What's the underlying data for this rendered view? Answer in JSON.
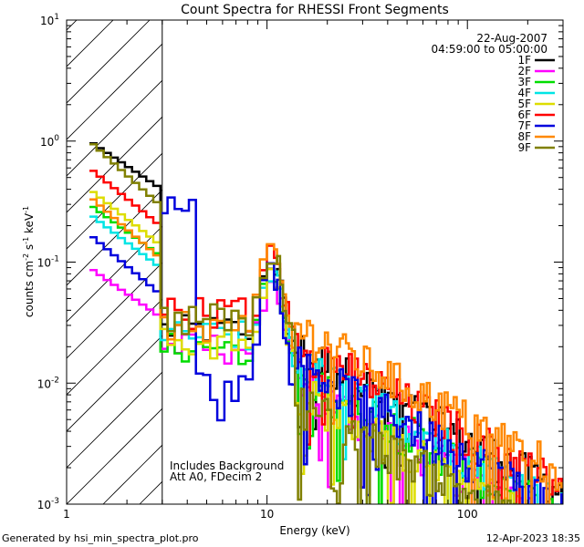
{
  "chart_data": {
    "type": "line",
    "title": "Count Spectra for RHESSI Front Segments",
    "xlabel": "Energy (keV)",
    "ylabel": {
      "main": "counts cm",
      "exp1": "-2",
      "mid": " s",
      "exp2": "-1",
      "end": " keV",
      "exp3": "-1"
    },
    "x_scale": "log",
    "y_scale": "log",
    "xlim": [
      1,
      300
    ],
    "ylim": [
      0.001,
      10
    ],
    "x_ticks": [
      {
        "value": 1,
        "label": "1"
      },
      {
        "value": 10,
        "label": "10"
      },
      {
        "value": 100,
        "label": "100"
      }
    ],
    "y_ticks": [
      {
        "value": 0.001,
        "base": "10",
        "exp": "-3"
      },
      {
        "value": 0.01,
        "base": "10",
        "exp": "-2"
      },
      {
        "value": 0.1,
        "base": "10",
        "exp": "-1"
      },
      {
        "value": 1,
        "base": "10",
        "exp": "0"
      },
      {
        "value": 10,
        "base": "10",
        "exp": "1"
      }
    ],
    "excluded_region": {
      "from": 1,
      "to": 3
    },
    "date": "22-Aug-2007",
    "time_range": "04:59:00 to 05:00:00",
    "annotations": [
      "Includes Background",
      "Att A0, FDecim 2"
    ],
    "series": [
      {
        "name": "1F",
        "color": "#000000",
        "level": 1.0,
        "mid": 0.028,
        "peak": 0.085,
        "tail": 0.004
      },
      {
        "name": "2F",
        "color": "#ff00ff",
        "level": 0.09,
        "mid": 0.02,
        "peak": 0.06,
        "tail": 0.002
      },
      {
        "name": "3F",
        "color": "#00dd00",
        "level": 0.3,
        "mid": 0.02,
        "peak": 0.07,
        "tail": 0.0025
      },
      {
        "name": "4F",
        "color": "#00e5e5",
        "level": 0.25,
        "mid": 0.025,
        "peak": 0.07,
        "tail": 0.003
      },
      {
        "name": "5F",
        "color": "#dddd00",
        "level": 0.4,
        "mid": 0.022,
        "peak": 0.065,
        "tail": 0.0018
      },
      {
        "name": "6F",
        "color": "#ff0000",
        "level": 0.6,
        "mid": 0.04,
        "peak": 0.09,
        "tail": 0.0045
      },
      {
        "name": "7F",
        "color": "#0000dd",
        "level": 0.17,
        "mid": 0.01,
        "peak": 0.08,
        "tail": 0.003
      },
      {
        "name": "8F",
        "color": "#ff8800",
        "level": 0.35,
        "mid": 0.03,
        "peak": 0.11,
        "tail": 0.006
      },
      {
        "name": "9F",
        "color": "#808000",
        "level": 1.0,
        "mid": 0.035,
        "peak": 0.1,
        "tail": 0.0015
      }
    ]
  },
  "footer": {
    "generated_by": "Generated by hsi_min_spectra_plot.pro",
    "timestamp": "12-Apr-2023 18:35"
  }
}
